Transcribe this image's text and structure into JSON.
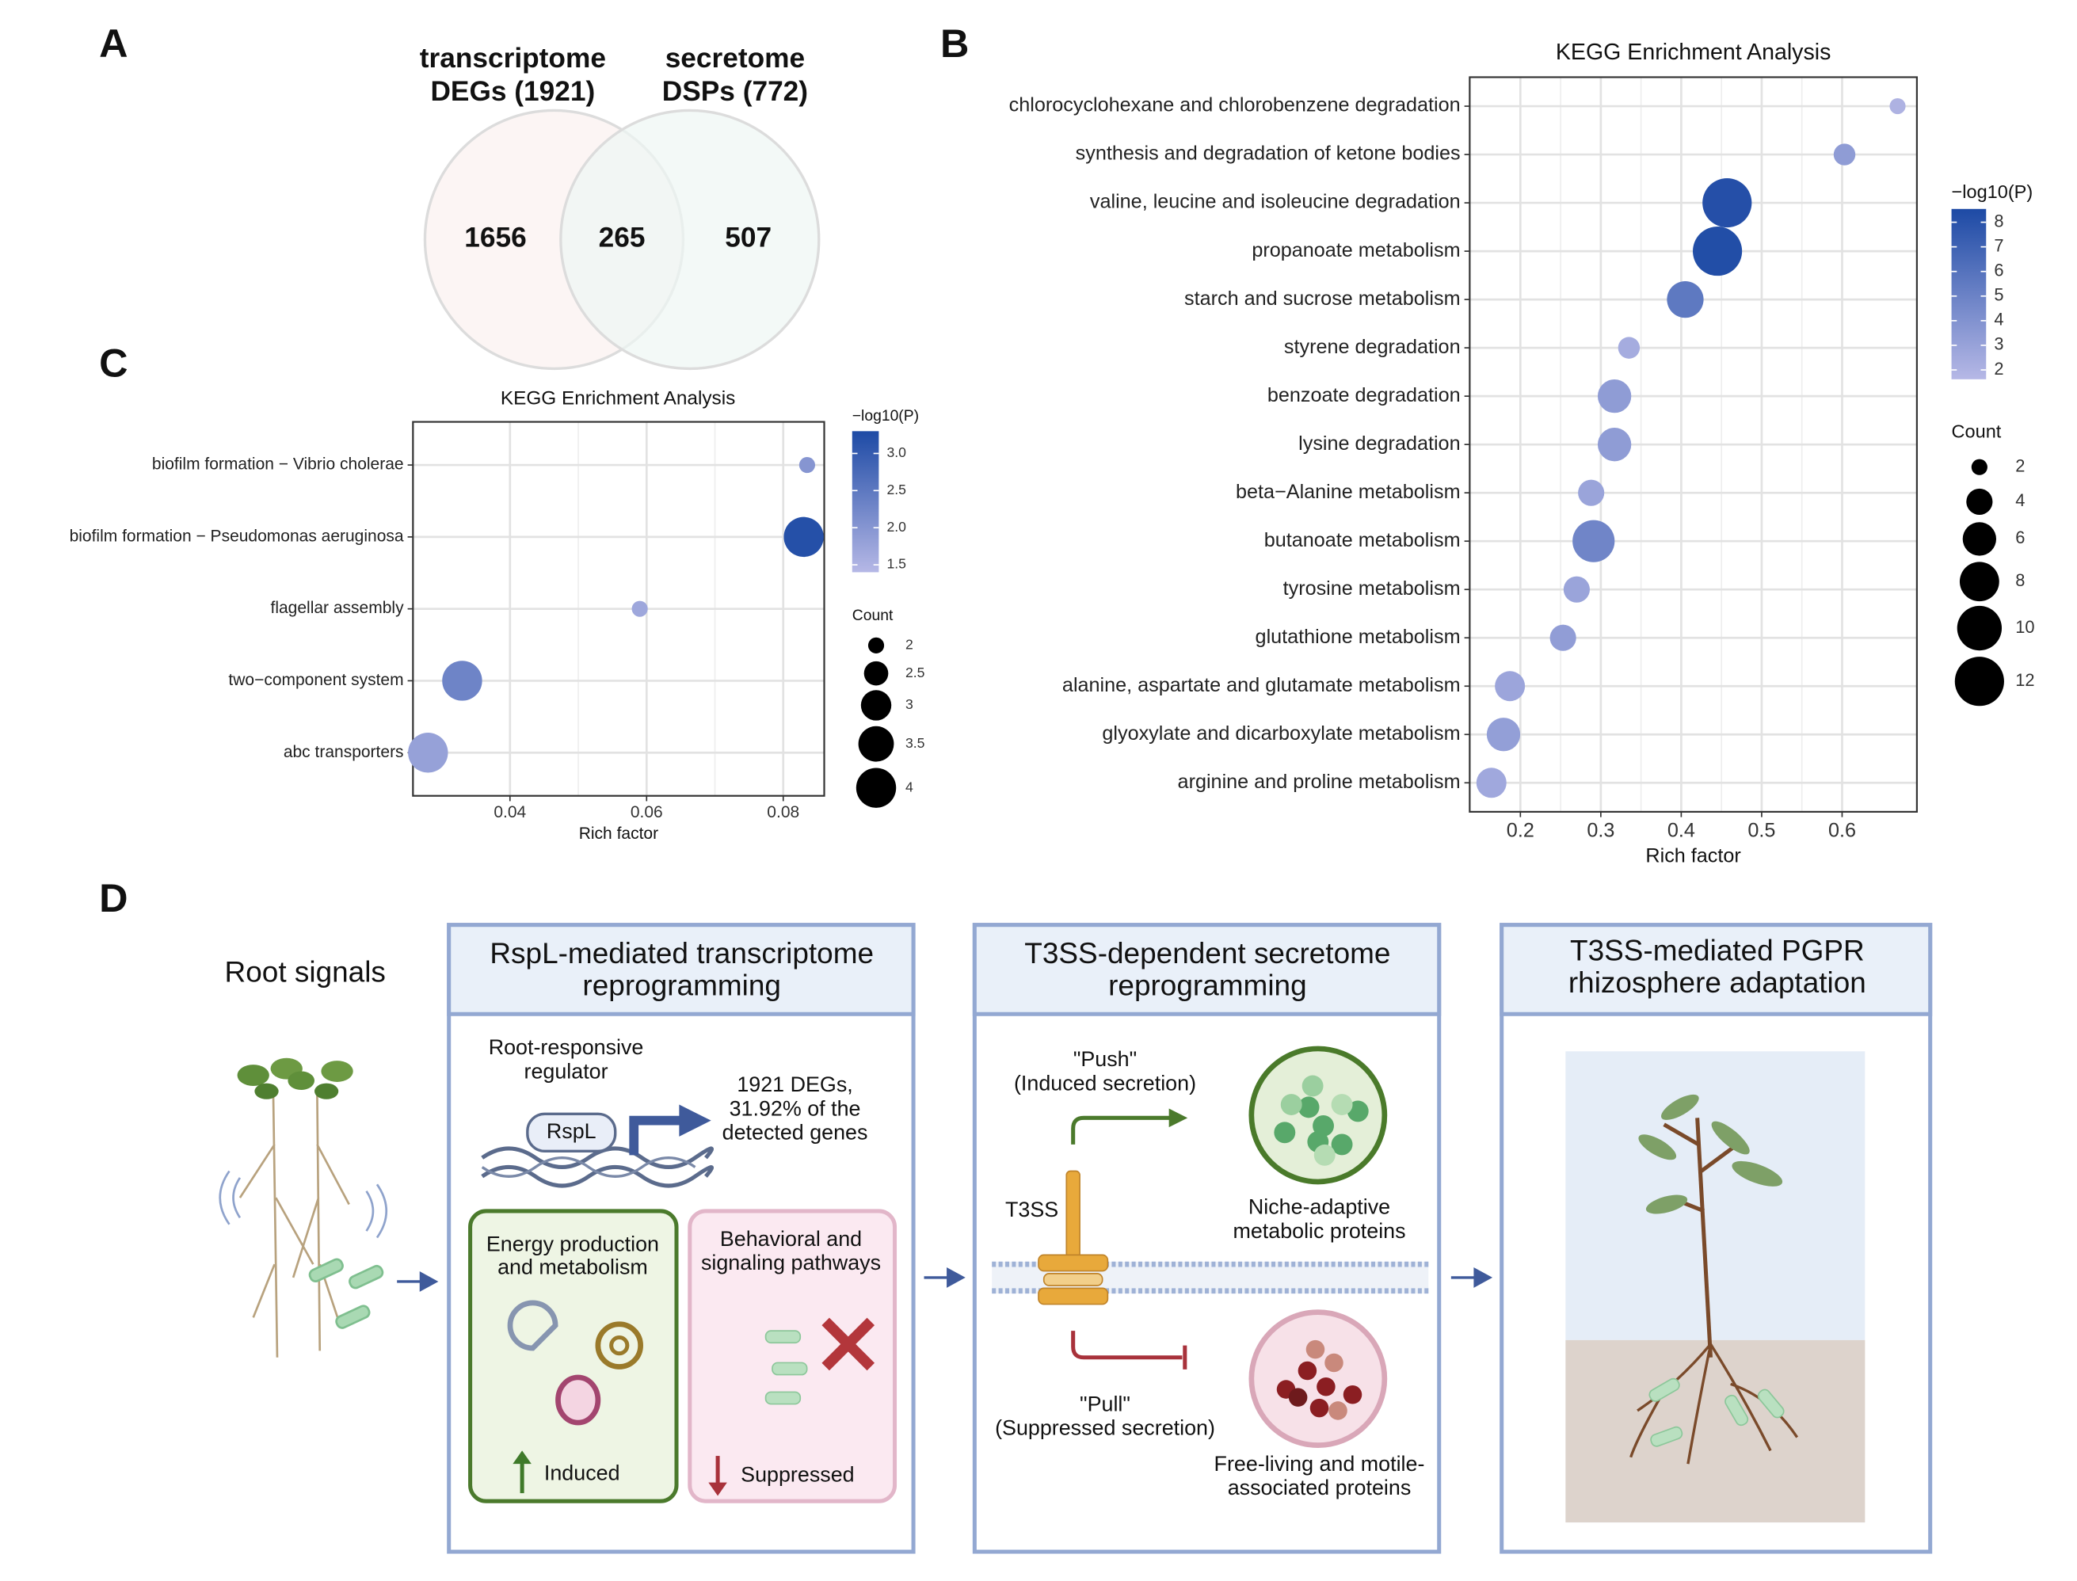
{
  "chart_data": [
    {
      "type": "venn",
      "panel": "A",
      "sets": [
        {
          "label": [
            "transcriptome",
            "DEGs (1921)"
          ],
          "color": "#fbf1f0"
        },
        {
          "label": [
            "secretome",
            "DSPs (772)"
          ],
          "color": "#eef6f4"
        }
      ],
      "values": [
        1656,
        265,
        507
      ]
    },
    {
      "type": "dot",
      "panel": "B",
      "title": "KEGG Enrichment Analysis",
      "x_label": "Rich factor",
      "categories": [
        "chlorocyclohexane and chlorobenzene degradation",
        "synthesis and degradation of ketone bodies",
        "valine, leucine and isoleucine degradation",
        "propanoate metabolism",
        "starch and sucrose metabolism",
        "styrene degradation",
        "benzoate degradation",
        "lysine degradation",
        "beta−Alanine metabolism",
        "butanoate metabolism",
        "tyrosine metabolism",
        "glutathione metabolism",
        "alanine, aspartate and glutamate metabolism",
        "glyoxylate and dicarboxylate metabolism",
        "arginine and proline metabolism"
      ],
      "x": [
        0.669,
        0.603,
        0.457,
        0.445,
        0.405,
        0.335,
        0.317,
        0.317,
        0.288,
        0.291,
        0.27,
        0.253,
        0.187,
        0.179,
        0.164
      ],
      "size": [
        2,
        3,
        12,
        12,
        7,
        3,
        6,
        6,
        4,
        9,
        4,
        4,
        5,
        6,
        5
      ],
      "color_values": [
        2.0,
        3.4,
        8.2,
        8.3,
        5.6,
        2.4,
        3.4,
        3.4,
        2.9,
        4.8,
        2.9,
        3.3,
        2.8,
        3.2,
        2.6
      ],
      "xlim": [
        0.137,
        0.693
      ],
      "xticks": [
        0.2,
        0.3,
        0.4,
        0.5,
        0.6
      ],
      "grid": true,
      "color_legend": {
        "title": "−log10(P)",
        "lim": [
          1.62,
          8.54
        ],
        "ticks": [
          2,
          3,
          4,
          5,
          6,
          7,
          8
        ],
        "colors": [
          "#b6b8e6",
          "#1d4aa5"
        ]
      },
      "size_legend": {
        "title": "Count",
        "ticks": [
          2,
          4,
          6,
          8,
          10,
          12
        ]
      }
    },
    {
      "type": "dot",
      "panel": "C",
      "title": "KEGG Enrichment Analysis",
      "x_label": "Rich factor",
      "categories": [
        "biofilm formation − Vibrio cholerae",
        "biofilm formation − Pseudomonas aeruginosa",
        "flagellar assembly",
        "two−component system",
        "abc transporters"
      ],
      "x": [
        0.0835,
        0.083,
        0.059,
        0.033,
        0.028
      ],
      "size": [
        2,
        4,
        2,
        4,
        4
      ],
      "color_values": [
        2.0,
        3.2,
        1.7,
        2.3,
        1.8
      ],
      "xlim": [
        0.0258,
        0.086
      ],
      "xticks": [
        0.04,
        0.06,
        0.08
      ],
      "grid": true,
      "color_legend": {
        "title": "−log10(P)",
        "lim": [
          1.4,
          3.3
        ],
        "ticks": [
          1.5,
          {
            "value": 2,
            "label": "2.0"
          },
          2.5,
          {
            "value": 3,
            "label": "3.0"
          }
        ],
        "colors": [
          "#b6b8e6",
          "#1d4aa5"
        ]
      },
      "size_legend": {
        "title": "Count",
        "ticks": [
          2,
          2.5,
          3,
          3.5,
          4
        ]
      }
    }
  ],
  "diagram": {
    "panel": "D",
    "root_signals": "Root signals",
    "transcriptome": {
      "title": [
        "RspL-mediated transcriptome",
        "reprogramming"
      ],
      "regulator": [
        "Root-responsive",
        "regulator"
      ],
      "gene": "RspL",
      "degs": [
        "1921 DEGs,",
        "31.92% of the",
        "detected genes"
      ],
      "induced_box": {
        "title": [
          "Energy production",
          "and metabolism"
        ],
        "label": "Induced"
      },
      "suppressed_box": {
        "title": [
          "Behavioral and",
          "signaling pathways"
        ],
        "label": "Suppressed"
      }
    },
    "secretome": {
      "title": [
        "T3SS-dependent secretome",
        "reprogramming"
      ],
      "push": [
        "\"Push\"",
        "(Induced secretion)"
      ],
      "t3ss": "T3SS",
      "niche": [
        "Niche-adaptive",
        "metabolic proteins"
      ],
      "pull": [
        "\"Pull\"",
        "(Suppressed secretion)"
      ],
      "free_living": [
        "Free-living and motile-",
        "associated proteins"
      ]
    },
    "adaptation": {
      "title": [
        "T3SS-mediated PGPR",
        "rhizosphere adaptation"
      ]
    }
  }
}
